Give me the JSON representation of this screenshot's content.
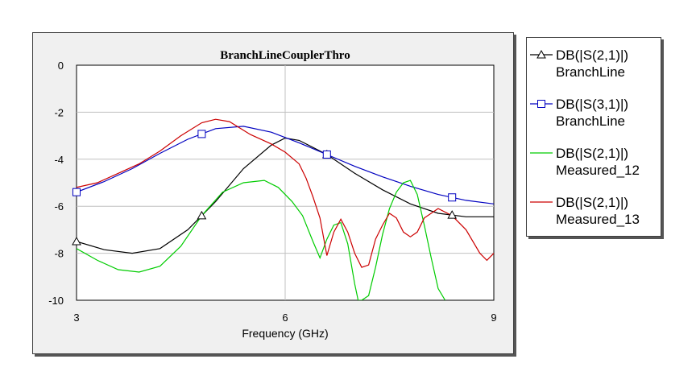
{
  "chart_data": {
    "type": "line",
    "title": "BranchLineCouplerThro",
    "xlabel": "Frequency (GHz)",
    "ylabel": "",
    "xlim": [
      3,
      9
    ],
    "ylim": [
      -10,
      0
    ],
    "xticks": [
      "3",
      "6",
      "9"
    ],
    "yticks": [
      "0",
      "-2",
      "-4",
      "-6",
      "-8",
      "-10"
    ],
    "grid": true,
    "legend_position": "right",
    "series": [
      {
        "name": "DB(|S(2,1)|)",
        "source": "BranchLine",
        "color": "#000000",
        "marker": "triangle",
        "x": [
          3.0,
          3.4,
          3.8,
          4.2,
          4.6,
          5.0,
          5.4,
          5.8,
          6.0,
          6.2,
          6.6,
          7.0,
          7.4,
          7.8,
          8.2,
          8.6,
          9.0
        ],
        "y": [
          -7.5,
          -7.85,
          -8.0,
          -7.8,
          -7.0,
          -5.8,
          -4.4,
          -3.4,
          -3.1,
          -3.2,
          -3.8,
          -4.6,
          -5.3,
          -5.9,
          -6.3,
          -6.45,
          -6.45
        ],
        "marker_x": [
          3.0,
          4.8,
          6.6,
          8.4
        ]
      },
      {
        "name": "DB(|S(3,1)|)",
        "source": "BranchLine",
        "color": "#0000c0",
        "marker": "square",
        "x": [
          3.0,
          3.4,
          3.8,
          4.2,
          4.6,
          5.0,
          5.4,
          5.8,
          6.2,
          6.6,
          7.0,
          7.4,
          7.8,
          8.2,
          8.6,
          9.0
        ],
        "y": [
          -5.4,
          -4.95,
          -4.4,
          -3.75,
          -3.15,
          -2.7,
          -2.6,
          -2.85,
          -3.3,
          -3.8,
          -4.3,
          -4.75,
          -5.15,
          -5.5,
          -5.75,
          -5.9
        ],
        "marker_x": [
          3.0,
          4.8,
          6.6,
          8.4
        ]
      },
      {
        "name": "DB(|S(2,1)|)",
        "source": "Measured_12",
        "color": "#00cc00",
        "marker": "none",
        "x": [
          3.0,
          3.3,
          3.6,
          3.9,
          4.2,
          4.5,
          4.8,
          5.1,
          5.4,
          5.7,
          5.9,
          6.1,
          6.25,
          6.4,
          6.5,
          6.6,
          6.7,
          6.8,
          6.9,
          7.0,
          7.05,
          7.1,
          7.2,
          7.3,
          7.4,
          7.5,
          7.6,
          7.7,
          7.8,
          7.9,
          8.0,
          8.1,
          8.2,
          8.3
        ],
        "y": [
          -7.8,
          -8.3,
          -8.7,
          -8.8,
          -8.55,
          -7.7,
          -6.4,
          -5.4,
          -5.0,
          -4.9,
          -5.2,
          -5.8,
          -6.4,
          -7.5,
          -8.2,
          -7.4,
          -6.8,
          -6.7,
          -7.6,
          -9.3,
          -10.0,
          -10.0,
          -9.8,
          -8.6,
          -7.2,
          -6.1,
          -5.4,
          -5.0,
          -4.9,
          -5.5,
          -6.8,
          -8.2,
          -9.5,
          -10.0
        ]
      },
      {
        "name": "DB(|S(2,1)|)",
        "source": "Measured_13",
        "color": "#cc0000",
        "marker": "none",
        "x": [
          3.0,
          3.3,
          3.6,
          3.9,
          4.2,
          4.5,
          4.8,
          5.0,
          5.2,
          5.5,
          5.8,
          6.0,
          6.2,
          6.3,
          6.4,
          6.5,
          6.6,
          6.7,
          6.8,
          6.9,
          7.0,
          7.1,
          7.2,
          7.3,
          7.4,
          7.5,
          7.6,
          7.7,
          7.8,
          7.9,
          8.0,
          8.2,
          8.4,
          8.6,
          8.8,
          8.9,
          9.0
        ],
        "y": [
          -5.2,
          -5.0,
          -4.6,
          -4.2,
          -3.65,
          -3.0,
          -2.45,
          -2.3,
          -2.4,
          -2.95,
          -3.35,
          -3.7,
          -4.2,
          -4.8,
          -5.6,
          -6.5,
          -8.1,
          -7.1,
          -6.55,
          -7.1,
          -8.0,
          -8.6,
          -8.5,
          -7.4,
          -6.8,
          -6.3,
          -6.5,
          -7.1,
          -7.3,
          -7.1,
          -6.5,
          -6.1,
          -6.4,
          -7.0,
          -8.0,
          -8.3,
          -8.0
        ]
      }
    ]
  },
  "legend": [
    {
      "line1": "DB(|S(2,1)|)",
      "line2": "BranchLine"
    },
    {
      "line1": "DB(|S(3,1)|)",
      "line2": "BranchLine"
    },
    {
      "line1": "DB(|S(2,1)|)",
      "line2": "Measured_12"
    },
    {
      "line1": "DB(|S(2,1)|)",
      "line2": "Measured_13"
    }
  ]
}
